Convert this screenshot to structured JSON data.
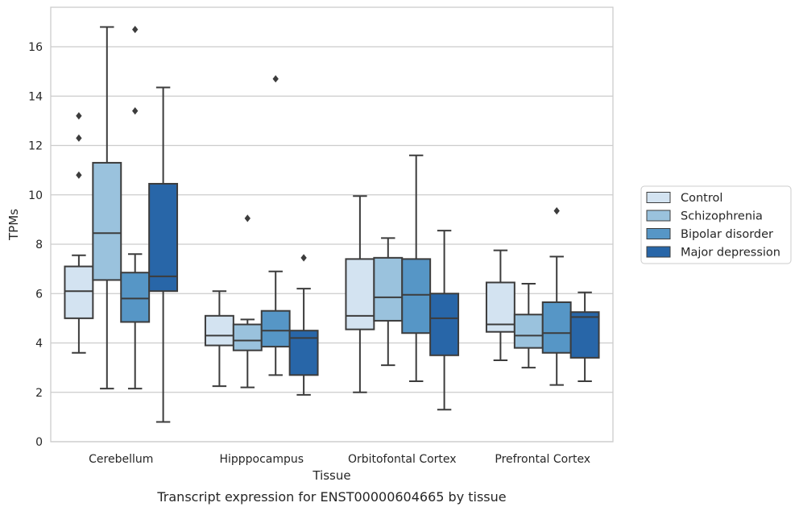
{
  "chart_data": {
    "type": "box",
    "caption": "Transcript expression for ENST00000604665 by tissue",
    "xlabel": "Tissue",
    "ylabel": "TPMs",
    "ylim": [
      0,
      17.6
    ],
    "yticks": [
      0,
      2,
      4,
      6,
      8,
      10,
      12,
      14,
      16
    ],
    "grid": true,
    "legend_position": "center-right",
    "categories": [
      "Cerebellum",
      "Hipppocampus",
      "Orbitofontal Cortex",
      "Prefrontal Cortex"
    ],
    "series": [
      {
        "name": "Control",
        "color": "#d3e3f1",
        "boxes": [
          {
            "whisker_low": 3.6,
            "q1": 5.0,
            "median": 6.1,
            "q3": 7.1,
            "whisker_high": 7.55,
            "outliers": [
              10.8,
              12.3,
              13.2
            ]
          },
          {
            "whisker_low": 2.25,
            "q1": 3.9,
            "median": 4.3,
            "q3": 5.1,
            "whisker_high": 6.1,
            "outliers": []
          },
          {
            "whisker_low": 2.0,
            "q1": 4.55,
            "median": 5.1,
            "q3": 7.4,
            "whisker_high": 9.95,
            "outliers": []
          },
          {
            "whisker_low": 3.3,
            "q1": 4.45,
            "median": 4.75,
            "q3": 6.45,
            "whisker_high": 7.75,
            "outliers": []
          }
        ]
      },
      {
        "name": "Schizophrenia",
        "color": "#9ac2dd",
        "boxes": [
          {
            "whisker_low": 2.15,
            "q1": 6.55,
            "median": 8.45,
            "q3": 11.3,
            "whisker_high": 16.8,
            "outliers": []
          },
          {
            "whisker_low": 2.2,
            "q1": 3.7,
            "median": 4.1,
            "q3": 4.75,
            "whisker_high": 4.95,
            "outliers": [
              9.05
            ]
          },
          {
            "whisker_low": 3.1,
            "q1": 4.9,
            "median": 5.85,
            "q3": 7.45,
            "whisker_high": 8.25,
            "outliers": []
          },
          {
            "whisker_low": 3.0,
            "q1": 3.8,
            "median": 4.3,
            "q3": 5.15,
            "whisker_high": 6.4,
            "outliers": []
          }
        ]
      },
      {
        "name": "Bipolar disorder",
        "color": "#5696c6",
        "boxes": [
          {
            "whisker_low": 2.15,
            "q1": 4.85,
            "median": 5.8,
            "q3": 6.85,
            "whisker_high": 7.6,
            "outliers": [
              13.4,
              16.7
            ]
          },
          {
            "whisker_low": 2.7,
            "q1": 3.85,
            "median": 4.5,
            "q3": 5.3,
            "whisker_high": 6.9,
            "outliers": [
              14.7
            ]
          },
          {
            "whisker_low": 2.45,
            "q1": 4.4,
            "median": 5.95,
            "q3": 7.4,
            "whisker_high": 11.6,
            "outliers": []
          },
          {
            "whisker_low": 2.3,
            "q1": 3.6,
            "median": 4.4,
            "q3": 5.65,
            "whisker_high": 7.5,
            "outliers": [
              9.35
            ]
          }
        ]
      },
      {
        "name": "Major depression",
        "color": "#2866a8",
        "boxes": [
          {
            "whisker_low": 0.8,
            "q1": 6.1,
            "median": 6.7,
            "q3": 10.45,
            "whisker_high": 14.35,
            "outliers": []
          },
          {
            "whisker_low": 1.9,
            "q1": 2.7,
            "median": 4.2,
            "q3": 4.5,
            "whisker_high": 6.2,
            "outliers": [
              7.45
            ]
          },
          {
            "whisker_low": 1.3,
            "q1": 3.5,
            "median": 5.0,
            "q3": 6.0,
            "whisker_high": 8.55,
            "outliers": []
          },
          {
            "whisker_low": 2.45,
            "q1": 3.4,
            "median": 5.05,
            "q3": 5.25,
            "whisker_high": 6.05,
            "outliers": []
          }
        ]
      }
    ]
  }
}
